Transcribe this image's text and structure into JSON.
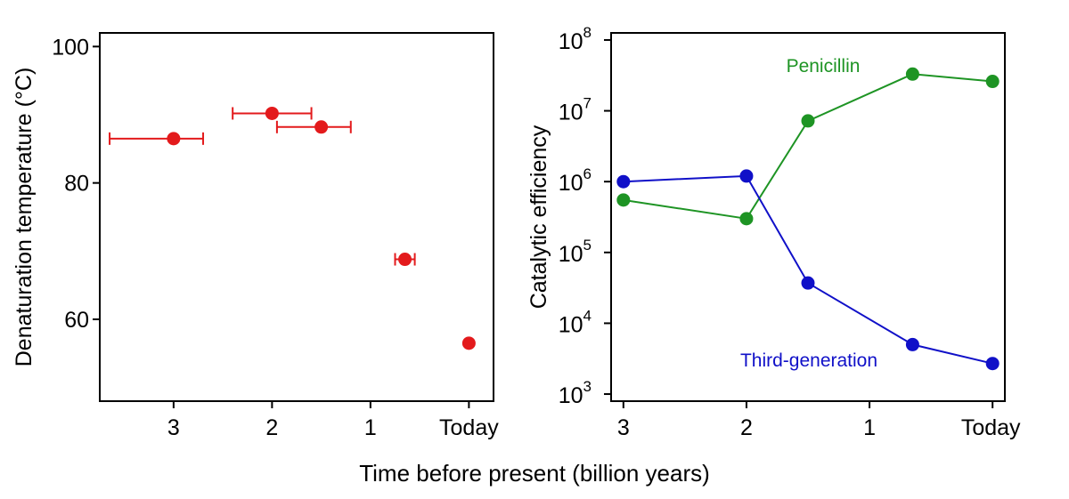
{
  "figure": {
    "shared_xlabel": "Time before present (billion years)"
  },
  "chart_data": [
    {
      "type": "scatter",
      "title": "",
      "xlabel": "",
      "ylabel": "Denaturation  temperature (°C)",
      "xlim": [
        3.75,
        -0.25
      ],
      "ylim": [
        48,
        102
      ],
      "xticks": [
        {
          "value": 3,
          "label": "3"
        },
        {
          "value": 2,
          "label": "2"
        },
        {
          "value": 1,
          "label": "1"
        },
        {
          "value": 0,
          "label": "Today"
        }
      ],
      "yticks": [
        {
          "value": 60,
          "label": "60"
        },
        {
          "value": 80,
          "label": "80"
        },
        {
          "value": 100,
          "label": "100"
        }
      ],
      "grid": false,
      "color": "#e31a1c",
      "points": [
        {
          "x": 3.0,
          "y": 86.5,
          "xerr_low": 2.7,
          "xerr_high": 3.65
        },
        {
          "x": 2.0,
          "y": 90.2,
          "xerr_low": 1.6,
          "xerr_high": 2.4
        },
        {
          "x": 1.5,
          "y": 88.2,
          "xerr_low": 1.2,
          "xerr_high": 1.95
        },
        {
          "x": 0.65,
          "y": 68.8,
          "xerr_low": 0.55,
          "xerr_high": 0.75
        },
        {
          "x": 0.0,
          "y": 56.5
        }
      ]
    },
    {
      "type": "line",
      "title": "",
      "xlabel": "",
      "ylabel": "Catalytic efficiency",
      "xlim": [
        3.1,
        -0.1
      ],
      "ylim_log10": [
        2.9,
        8.1
      ],
      "yscale": "log",
      "xticks": [
        {
          "value": 3,
          "label": "3"
        },
        {
          "value": 2,
          "label": "2"
        },
        {
          "value": 1,
          "label": "1"
        },
        {
          "value": 0,
          "label": "Today"
        }
      ],
      "yticks": [
        {
          "value": 1000,
          "base": "10",
          "exp": "3"
        },
        {
          "value": 10000,
          "base": "10",
          "exp": "4"
        },
        {
          "value": 100000,
          "base": "10",
          "exp": "5"
        },
        {
          "value": 1000000,
          "base": "10",
          "exp": "6"
        },
        {
          "value": 10000000,
          "base": "10",
          "exp": "7"
        },
        {
          "value": 100000000,
          "base": "10",
          "exp": "8"
        }
      ],
      "grid": false,
      "x": [
        3.0,
        2.0,
        1.5,
        0.65,
        0.0
      ],
      "series": [
        {
          "name": "Penicillin",
          "color": "#1e9424",
          "values": [
            550000,
            300000,
            7200000,
            33000000,
            26000000
          ]
        },
        {
          "name": "Third-generation",
          "color": "#1010c8",
          "values": [
            1000000,
            1200000,
            37000,
            5000,
            2700
          ]
        }
      ]
    }
  ]
}
